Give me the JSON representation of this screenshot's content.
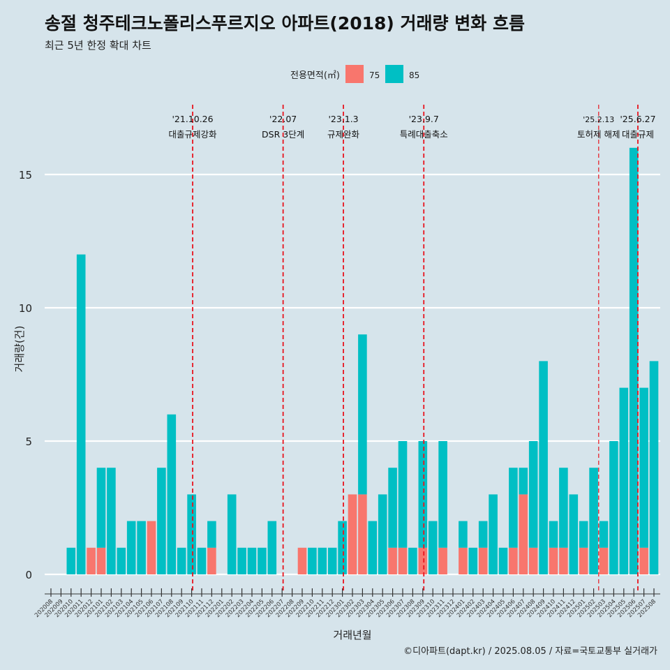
{
  "header": {
    "title": "송절 청주테크노폴리스푸르지오 아파트(2018) 거래량 변화 흐름",
    "subtitle": "최근 5년 한정 확대 차트"
  },
  "caption": "©디아파트(dapt.kr) / 2025.08.05 / 자료=국토교통부 실거래가",
  "colors": {
    "background": "#d6e4eb",
    "s75": "#f8766d",
    "s85": "#00bfc4",
    "event_line": "#e8141e",
    "grid": "#ffffff"
  },
  "chart_data": {
    "type": "bar",
    "stacked": true,
    "xlabel": "거래년월",
    "ylabel": "거래량(건)",
    "ylim": [
      -0.7,
      17.6
    ],
    "yticks": [
      0,
      5,
      10,
      15
    ],
    "grid": true,
    "legend": {
      "title": "전용면적(㎡)",
      "position": "top",
      "entries": [
        "75",
        "85"
      ]
    },
    "categories": [
      "202008",
      "202009",
      "202010",
      "202011",
      "202012",
      "202101",
      "202102",
      "202103",
      "202104",
      "202105",
      "202106",
      "202107",
      "202108",
      "202109",
      "202110",
      "202111",
      "202112",
      "202201",
      "202202",
      "202203",
      "202204",
      "202205",
      "202206",
      "202207",
      "202208",
      "202209",
      "202210",
      "202211",
      "202212",
      "202301",
      "202302",
      "202303",
      "202304",
      "202305",
      "202306",
      "202307",
      "202308",
      "202309",
      "202310",
      "202311",
      "202312",
      "202401",
      "202402",
      "202403",
      "202404",
      "202405",
      "202406",
      "202407",
      "202408",
      "202409",
      "202410",
      "202411",
      "202412",
      "202501",
      "202502",
      "202503",
      "202504",
      "202505",
      "202506",
      "202507",
      "202508"
    ],
    "series": [
      {
        "name": "75",
        "values": [
          0,
          0,
          0,
          0,
          1,
          1,
          0,
          0,
          0,
          0,
          2,
          0,
          0,
          0,
          0,
          0,
          1,
          0,
          0,
          0,
          0,
          0,
          0,
          0,
          0,
          1,
          0,
          0,
          0,
          0,
          3,
          3,
          0,
          0,
          1,
          1,
          0,
          1,
          0,
          1,
          0,
          1,
          0,
          1,
          0,
          0,
          1,
          3,
          1,
          0,
          1,
          1,
          0,
          1,
          0,
          1,
          0,
          0,
          0,
          1,
          0
        ]
      },
      {
        "name": "85",
        "values": [
          0,
          0,
          1,
          12,
          0,
          3,
          4,
          1,
          2,
          2,
          0,
          4,
          6,
          1,
          3,
          1,
          1,
          0,
          3,
          1,
          1,
          1,
          2,
          0,
          0,
          0,
          1,
          1,
          1,
          2,
          0,
          6,
          2,
          3,
          3,
          4,
          1,
          4,
          2,
          4,
          0,
          1,
          1,
          1,
          3,
          1,
          3,
          1,
          4,
          8,
          1,
          3,
          3,
          1,
          4,
          1,
          5,
          7,
          16,
          6,
          8
        ]
      }
    ],
    "events": [
      {
        "date": "'21.10.26",
        "label": "대출규제강화"
      },
      {
        "date": "'22.07",
        "label": "DSR 3단계"
      },
      {
        "date": "'23.1.3",
        "label": "규제완화"
      },
      {
        "date": "'23.9.7",
        "label": "특례대출축소"
      },
      {
        "date": "'25.2.13",
        "label": "토허제 해제"
      },
      {
        "date": "'25.6.27",
        "label": "대출규제"
      }
    ]
  }
}
